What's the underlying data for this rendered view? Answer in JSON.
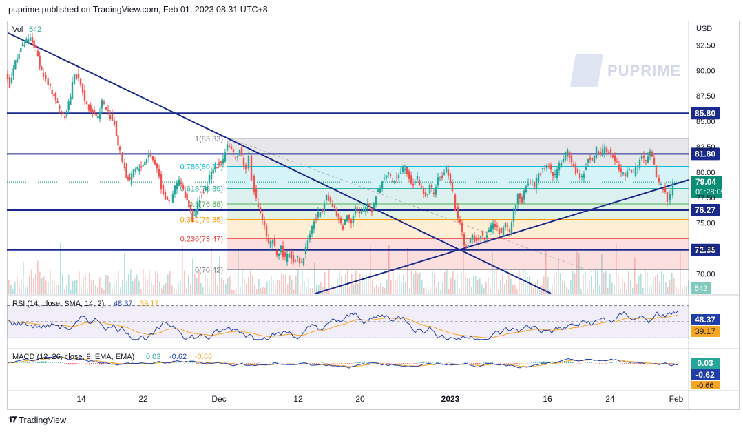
{
  "header": {
    "publish_line": "puprime published on TradingView.com, Feb 01, 2023 08:31 UTC+8"
  },
  "footer": {
    "brand": "TradingView"
  },
  "watermark": {
    "text": "PUPRIME"
  },
  "colors": {
    "up": "#26a69a",
    "down": "#ef5350",
    "trend": "#1a2a8c",
    "rsi": "#1f3ea8",
    "signal": "#f5a623",
    "price_tag": "#0a8f76"
  },
  "chart_data": [
    {
      "type": "candlestick",
      "title": "",
      "currency": "USD",
      "x_ticks": [
        "14",
        "22",
        "Dec",
        "12",
        "20",
        "2023",
        "16",
        "24",
        "Feb"
      ],
      "y_ticks": [
        "92.50",
        "90.00",
        "87.50",
        "85.00",
        "82.50",
        "80.00",
        "77.50",
        "75.00",
        "72.50",
        "70.00"
      ],
      "ylim": [
        68.0,
        95.0
      ],
      "volume": {
        "label": "Vol",
        "value": "542"
      },
      "last_price": {
        "value": "79.04",
        "countdown": "01:28:09"
      },
      "horizontal_levels": [
        "85.80",
        "81.80",
        "76.27",
        "72.35"
      ],
      "fibonacci": [
        {
          "label": "1(83.33)",
          "value": 83.33,
          "color": "#787b86"
        },
        {
          "label": "0.786(80.57)",
          "value": 80.57,
          "color": "#00bcd4"
        },
        {
          "label": "0.618(78.39)",
          "value": 78.39,
          "color": "#26a69a"
        },
        {
          "label": "0.5(76.88)",
          "value": 76.88,
          "color": "#4caf50"
        },
        {
          "label": "0.382(75.35)",
          "value": 75.35,
          "color": "#ff9800"
        },
        {
          "label": "0.236(73.47)",
          "value": 73.47,
          "color": "#e53935"
        },
        {
          "label": "0(70.42)",
          "value": 70.42,
          "color": "#787b86"
        }
      ],
      "price_path": [
        [
          0,
          89.6
        ],
        [
          6,
          88.5
        ],
        [
          14,
          91.0
        ],
        [
          22,
          92.2
        ],
        [
          30,
          92.8
        ],
        [
          36,
          93.1
        ],
        [
          44,
          92.0
        ],
        [
          52,
          90.0
        ],
        [
          62,
          88.5
        ],
        [
          70,
          87.6
        ],
        [
          78,
          86.2
        ],
        [
          86,
          85.6
        ],
        [
          94,
          87.5
        ],
        [
          100,
          89.8
        ],
        [
          106,
          89.0
        ],
        [
          112,
          88.0
        ],
        [
          118,
          86.5
        ],
        [
          126,
          86.0
        ],
        [
          134,
          85.4
        ],
        [
          140,
          87.0
        ],
        [
          146,
          86.2
        ],
        [
          152,
          85.5
        ],
        [
          158,
          84.8
        ],
        [
          163,
          82.6
        ],
        [
          170,
          81.2
        ],
        [
          175,
          79.6
        ],
        [
          180,
          79.0
        ],
        [
          186,
          80.2
        ],
        [
          194,
          80.4
        ],
        [
          202,
          81.0
        ],
        [
          208,
          81.8
        ],
        [
          214,
          81.2
        ],
        [
          220,
          80.5
        ],
        [
          226,
          78.5
        ],
        [
          232,
          77.5
        ],
        [
          240,
          77.2
        ],
        [
          246,
          78.5
        ],
        [
          252,
          79.2
        ],
        [
          258,
          78.2
        ],
        [
          266,
          76.8
        ],
        [
          271,
          75.5
        ],
        [
          276,
          76.2
        ],
        [
          282,
          77.5
        ],
        [
          290,
          78.2
        ],
        [
          296,
          79.5
        ],
        [
          304,
          80.6
        ],
        [
          310,
          80.9
        ],
        [
          316,
          81.3
        ],
        [
          322,
          82.8
        ],
        [
          328,
          82.0
        ],
        [
          334,
          81.4
        ],
        [
          340,
          82.2
        ],
        [
          346,
          80.8
        ],
        [
          350,
          80.2
        ],
        [
          354,
          81.6
        ],
        [
          358,
          79.4
        ],
        [
          364,
          77.2
        ],
        [
          370,
          76.0
        ],
        [
          376,
          74.6
        ],
        [
          382,
          72.8
        ],
        [
          388,
          73.2
        ],
        [
          394,
          71.9
        ],
        [
          400,
          72.5
        ],
        [
          406,
          71.4
        ],
        [
          412,
          72.1
        ],
        [
          418,
          71.2
        ],
        [
          424,
          71.8
        ],
        [
          430,
          70.9
        ],
        [
          436,
          72.6
        ],
        [
          442,
          74.0
        ],
        [
          448,
          75.2
        ],
        [
          454,
          75.8
        ],
        [
          460,
          76.4
        ],
        [
          466,
          77.9
        ],
        [
          472,
          77.0
        ],
        [
          478,
          76.2
        ],
        [
          484,
          75.3
        ],
        [
          490,
          74.6
        ],
        [
          496,
          75.8
        ],
        [
          502,
          75.2
        ],
        [
          508,
          76.5
        ],
        [
          514,
          75.8
        ],
        [
          520,
          76.2
        ],
        [
          526,
          77.0
        ],
        [
          532,
          76.2
        ],
        [
          538,
          77.8
        ],
        [
          544,
          78.6
        ],
        [
          550,
          79.5
        ],
        [
          556,
          80.0
        ],
        [
          562,
          78.8
        ],
        [
          568,
          79.6
        ],
        [
          574,
          80.2
        ],
        [
          580,
          80.6
        ],
        [
          586,
          79.5
        ],
        [
          592,
          78.8
        ],
        [
          598,
          79.4
        ],
        [
          604,
          78.3
        ],
        [
          610,
          77.6
        ],
        [
          616,
          78.5
        ],
        [
          622,
          78.0
        ],
        [
          628,
          79.2
        ],
        [
          634,
          79.6
        ],
        [
          640,
          80.3
        ],
        [
          646,
          79.2
        ],
        [
          650,
          78.0
        ],
        [
          654,
          76.3
        ],
        [
          660,
          74.8
        ],
        [
          666,
          73.0
        ],
        [
          672,
          72.8
        ],
        [
          678,
          73.6
        ],
        [
          684,
          73.2
        ],
        [
          690,
          74.0
        ],
        [
          696,
          73.5
        ],
        [
          702,
          74.3
        ],
        [
          708,
          75.0
        ],
        [
          714,
          74.4
        ],
        [
          720,
          74.0
        ],
        [
          726,
          74.8
        ],
        [
          732,
          74.2
        ],
        [
          738,
          76.0
        ],
        [
          744,
          77.8
        ],
        [
          750,
          77.3
        ],
        [
          756,
          78.5
        ],
        [
          762,
          79.2
        ],
        [
          768,
          78.6
        ],
        [
          774,
          79.8
        ],
        [
          780,
          80.2
        ],
        [
          786,
          80.8
        ],
        [
          792,
          80.1
        ],
        [
          798,
          79.6
        ],
        [
          804,
          80.8
        ],
        [
          810,
          81.3
        ],
        [
          816,
          82.2
        ],
        [
          822,
          81.0
        ],
        [
          828,
          80.0
        ],
        [
          834,
          79.4
        ],
        [
          840,
          80.0
        ],
        [
          846,
          81.4
        ],
        [
          852,
          81.0
        ],
        [
          858,
          82.2
        ],
        [
          864,
          81.6
        ],
        [
          870,
          82.4
        ],
        [
          876,
          82.0
        ],
        [
          882,
          81.4
        ],
        [
          888,
          80.8
        ],
        [
          894,
          80.0
        ],
        [
          900,
          79.6
        ],
        [
          906,
          80.4
        ],
        [
          912,
          79.8
        ],
        [
          918,
          80.6
        ],
        [
          924,
          81.6
        ],
        [
          930,
          81.0
        ],
        [
          936,
          82.0
        ],
        [
          942,
          80.6
        ],
        [
          946,
          79.4
        ],
        [
          952,
          78.6
        ],
        [
          958,
          78.0
        ],
        [
          962,
          77.1
        ],
        [
          966,
          77.8
        ],
        [
          970,
          79.0
        ]
      ]
    },
    {
      "type": "line",
      "title": "",
      "label": "RSI (14, close, SMA, 14, 2)",
      "series": [
        {
          "name": "RSI",
          "last": "48.37"
        },
        {
          "name": "SMA",
          "last": "39.17"
        }
      ],
      "ylim": [
        20,
        80
      ],
      "bands": [
        30,
        50,
        70
      ]
    },
    {
      "type": "line",
      "title": "",
      "label": "MACD (12, 26, close, 9, EMA, EMA)",
      "series": [
        {
          "name": "Histogram",
          "last": "0.03"
        },
        {
          "name": "MACD",
          "last": "-0.62"
        },
        {
          "name": "Signal",
          "last": "-0.66"
        }
      ]
    }
  ]
}
